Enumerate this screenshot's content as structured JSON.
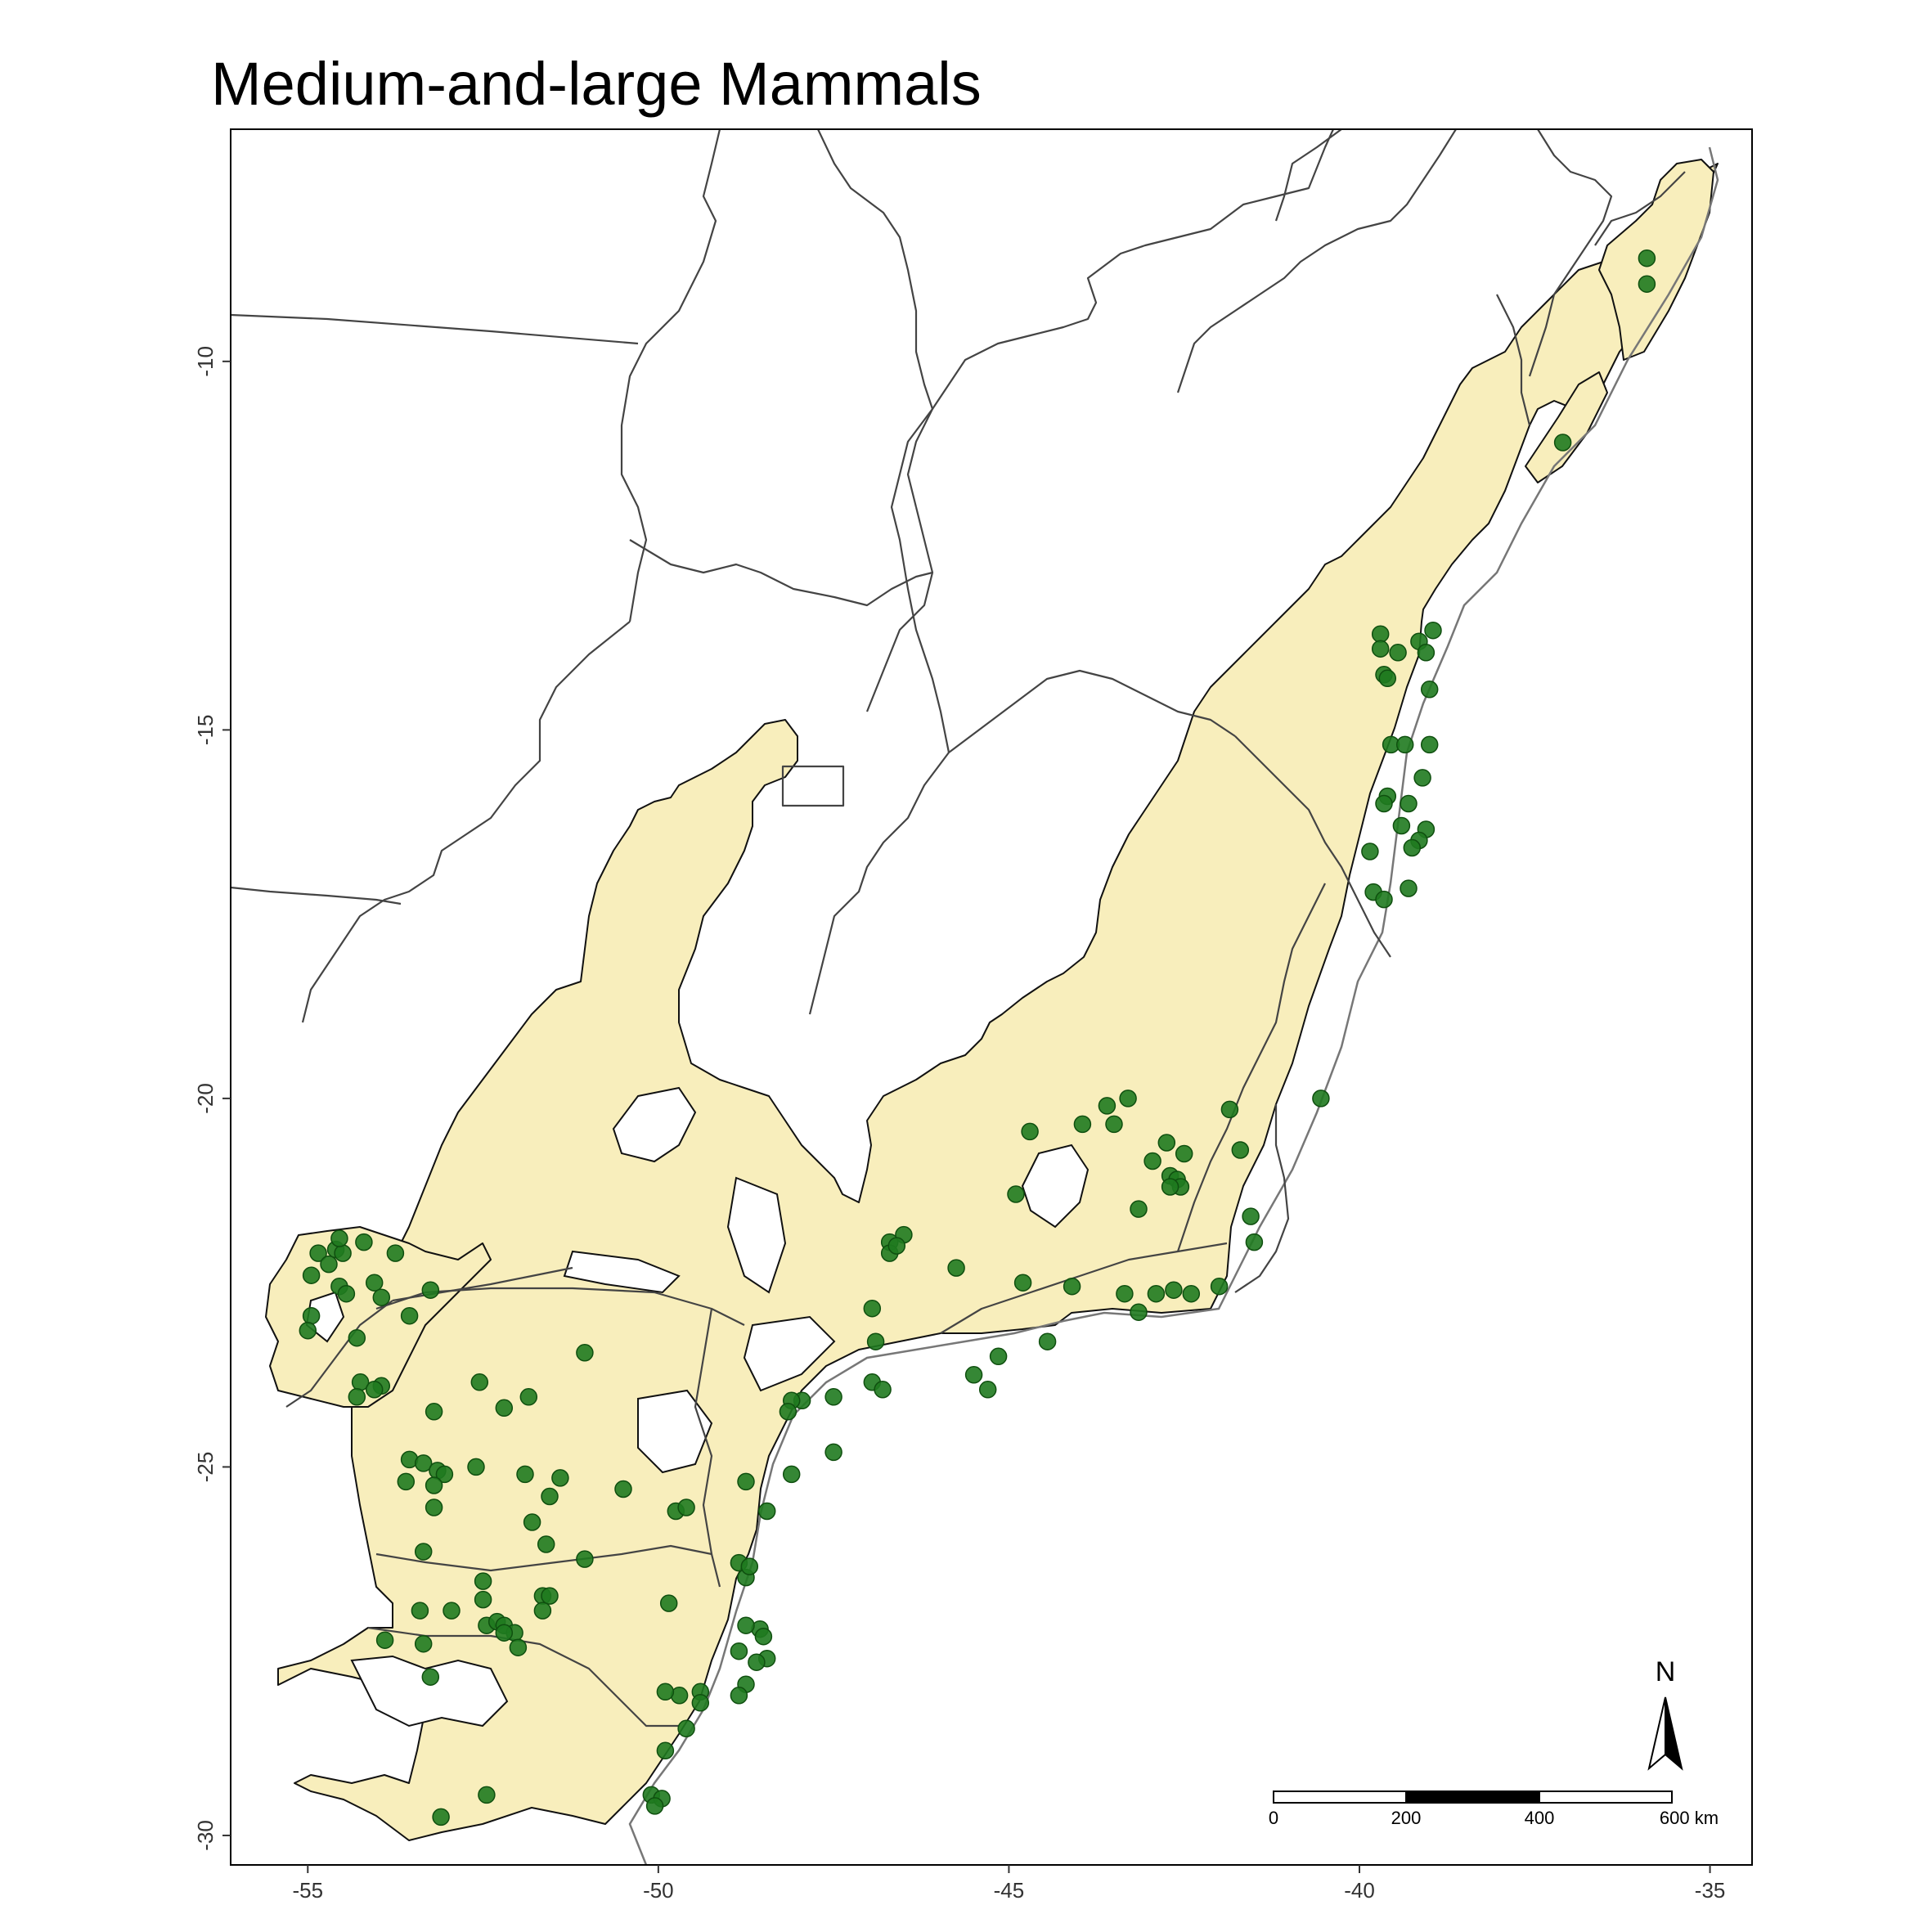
{
  "title": "Medium-and-large Mammals",
  "colors": {
    "forest_fill": "#f8eebc",
    "point_fill": "#1f7a1f",
    "point_stroke": "#0f4f0f",
    "state_line": "#444444"
  },
  "map": {
    "x_ticks": [
      -55,
      -50,
      -45,
      -40,
      -35
    ],
    "y_ticks": [
      -10,
      -15,
      -20,
      -25,
      -30
    ],
    "x_tick_labels": [
      "-55",
      "-50",
      "-45",
      "-40",
      "-35"
    ],
    "y_tick_labels": [
      "-10",
      "-15",
      "-20",
      "-25",
      "-30"
    ],
    "lon_range": [
      -56.1,
      -34.4
    ],
    "lat_range": [
      -30.4,
      -6.85
    ],
    "north_arrow_label": "N",
    "scale_bar": {
      "labels": [
        "0",
        "200",
        "400",
        "600 km"
      ]
    }
  },
  "chart_data": {
    "type": "scatter",
    "title": "Medium-and-large Mammals",
    "xlim": [
      -56.1,
      -34.4
    ],
    "ylim": [
      -30.4,
      -6.85
    ],
    "points": [
      [
        -35.9,
        -8.6
      ],
      [
        -35.9,
        -8.95
      ],
      [
        -37.1,
        -11.1
      ],
      [
        -39.7,
        -13.7
      ],
      [
        -39.7,
        -13.9
      ],
      [
        -39.45,
        -13.95
      ],
      [
        -39.15,
        -13.8
      ],
      [
        -39.05,
        -13.95
      ],
      [
        -38.95,
        -13.65
      ],
      [
        -39.65,
        -14.25
      ],
      [
        -39.6,
        -14.3
      ],
      [
        -39.0,
        -14.45
      ],
      [
        -39.55,
        -15.2
      ],
      [
        -39.35,
        -15.2
      ],
      [
        -39.0,
        -15.2
      ],
      [
        -39.1,
        -15.65
      ],
      [
        -39.6,
        -15.9
      ],
      [
        -39.65,
        -16.0
      ],
      [
        -39.3,
        -16.0
      ],
      [
        -39.4,
        -16.3
      ],
      [
        -39.05,
        -16.35
      ],
      [
        -39.15,
        -16.5
      ],
      [
        -39.25,
        -16.6
      ],
      [
        -39.85,
        -16.65
      ],
      [
        -39.8,
        -17.2
      ],
      [
        -39.65,
        -17.3
      ],
      [
        -39.3,
        -17.15
      ],
      [
        -40.55,
        -20.0
      ],
      [
        -41.85,
        -20.15
      ],
      [
        -41.7,
        -20.7
      ],
      [
        -41.55,
        -21.6
      ],
      [
        -41.5,
        -21.95
      ],
      [
        -43.3,
        -20.0
      ],
      [
        -43.6,
        -20.1
      ],
      [
        -43.5,
        -20.35
      ],
      [
        -43.95,
        -20.35
      ],
      [
        -44.7,
        -20.45
      ],
      [
        -42.75,
        -20.6
      ],
      [
        -42.95,
        -20.85
      ],
      [
        -42.5,
        -20.75
      ],
      [
        -42.7,
        -21.05
      ],
      [
        -42.6,
        -21.1
      ],
      [
        -42.55,
        -21.2
      ],
      [
        -42.7,
        -21.2
      ],
      [
        -43.15,
        -21.5
      ],
      [
        -44.9,
        -21.3
      ],
      [
        -46.5,
        -21.85
      ],
      [
        -46.7,
        -21.95
      ],
      [
        -46.7,
        -22.1
      ],
      [
        -46.6,
        -22.0
      ],
      [
        -45.75,
        -22.3
      ],
      [
        -44.8,
        -22.5
      ],
      [
        -44.1,
        -22.55
      ],
      [
        -42.4,
        -22.65
      ],
      [
        -42.9,
        -22.65
      ],
      [
        -42.65,
        -22.6
      ],
      [
        -42.0,
        -22.55
      ],
      [
        -43.35,
        -22.65
      ],
      [
        -43.15,
        -22.9
      ],
      [
        -46.95,
        -22.85
      ],
      [
        -46.9,
        -23.3
      ],
      [
        -44.45,
        -23.3
      ],
      [
        -45.15,
        -23.5
      ],
      [
        -45.5,
        -23.75
      ],
      [
        -45.3,
        -23.95
      ],
      [
        -46.95,
        -23.85
      ],
      [
        -46.8,
        -23.95
      ],
      [
        -47.5,
        -24.05
      ],
      [
        -47.95,
        -24.1
      ],
      [
        -48.1,
        -24.1
      ],
      [
        -48.15,
        -24.25
      ],
      [
        -47.5,
        -24.8
      ],
      [
        -48.1,
        -25.1
      ],
      [
        -48.75,
        -25.2
      ],
      [
        -49.75,
        -25.6
      ],
      [
        -49.6,
        -25.55
      ],
      [
        -48.45,
        -25.6
      ],
      [
        -48.85,
        -26.3
      ],
      [
        -48.75,
        -26.5
      ],
      [
        -48.7,
        -26.35
      ],
      [
        -48.55,
        -27.2
      ],
      [
        -48.75,
        -27.15
      ],
      [
        -48.85,
        -27.5
      ],
      [
        -48.5,
        -27.3
      ],
      [
        -48.45,
        -27.6
      ],
      [
        -48.6,
        -27.65
      ],
      [
        -48.75,
        -27.95
      ],
      [
        -48.85,
        -28.1
      ],
      [
        -49.4,
        -28.05
      ],
      [
        -49.7,
        -28.1
      ],
      [
        -49.4,
        -28.2
      ],
      [
        -49.9,
        -28.05
      ],
      [
        -49.6,
        -28.55
      ],
      [
        -49.9,
        -28.85
      ],
      [
        -50.1,
        -29.45
      ],
      [
        -49.95,
        -29.5
      ],
      [
        -50.05,
        -29.6
      ],
      [
        -49.85,
        -26.85
      ],
      [
        -51.05,
        -23.45
      ],
      [
        -54.95,
        -22.4
      ],
      [
        -54.85,
        -22.1
      ],
      [
        -54.6,
        -22.05
      ],
      [
        -54.7,
        -22.25
      ],
      [
        -54.5,
        -22.1
      ],
      [
        -54.55,
        -21.9
      ],
      [
        -54.2,
        -21.95
      ],
      [
        -53.75,
        -22.1
      ],
      [
        -54.55,
        -22.55
      ],
      [
        -54.45,
        -22.65
      ],
      [
        -54.05,
        -22.5
      ],
      [
        -53.95,
        -22.7
      ],
      [
        -53.25,
        -22.6
      ],
      [
        -54.95,
        -22.95
      ],
      [
        -55.0,
        -23.15
      ],
      [
        -54.3,
        -23.25
      ],
      [
        -53.55,
        -22.95
      ],
      [
        -54.25,
        -23.85
      ],
      [
        -54.3,
        -24.05
      ],
      [
        -53.95,
        -23.9
      ],
      [
        -54.05,
        -23.95
      ],
      [
        -52.55,
        -23.85
      ],
      [
        -52.2,
        -24.2
      ],
      [
        -51.85,
        -24.05
      ],
      [
        -53.2,
        -24.25
      ],
      [
        -53.55,
        -24.9
      ],
      [
        -53.35,
        -24.95
      ],
      [
        -53.15,
        -25.05
      ],
      [
        -53.05,
        -25.1
      ],
      [
        -53.6,
        -25.2
      ],
      [
        -53.2,
        -25.25
      ],
      [
        -52.6,
        -25.0
      ],
      [
        -51.9,
        -25.1
      ],
      [
        -51.4,
        -25.15
      ],
      [
        -53.2,
        -25.55
      ],
      [
        -51.55,
        -25.4
      ],
      [
        -50.5,
        -25.3
      ],
      [
        -51.8,
        -25.75
      ],
      [
        -51.6,
        -26.05
      ],
      [
        -51.05,
        -26.25
      ],
      [
        -53.35,
        -26.15
      ],
      [
        -52.5,
        -26.55
      ],
      [
        -52.5,
        -26.8
      ],
      [
        -52.95,
        -26.95
      ],
      [
        -53.4,
        -26.95
      ],
      [
        -51.65,
        -26.75
      ],
      [
        -51.55,
        -26.75
      ],
      [
        -52.45,
        -27.15
      ],
      [
        -52.3,
        -27.1
      ],
      [
        -52.2,
        -27.15
      ],
      [
        -51.65,
        -26.95
      ],
      [
        -52.05,
        -27.25
      ],
      [
        -52.0,
        -27.45
      ],
      [
        -53.35,
        -27.4
      ],
      [
        -53.9,
        -27.35
      ],
      [
        -52.2,
        -27.25
      ],
      [
        -53.25,
        -27.85
      ],
      [
        -52.45,
        -29.45
      ],
      [
        -53.1,
        -29.75
      ]
    ]
  }
}
